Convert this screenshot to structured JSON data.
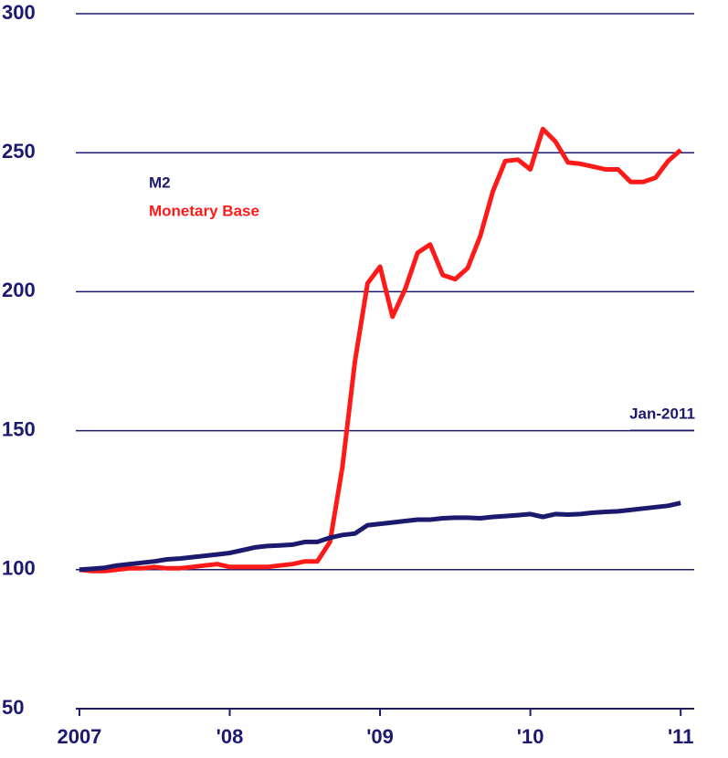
{
  "chart_data": {
    "type": "line",
    "x": [
      2007,
      2007.083,
      2007.167,
      2007.25,
      2007.333,
      2007.417,
      2007.5,
      2007.583,
      2007.667,
      2007.75,
      2007.833,
      2007.917,
      2008,
      2008.083,
      2008.167,
      2008.25,
      2008.333,
      2008.417,
      2008.5,
      2008.583,
      2008.667,
      2008.75,
      2008.833,
      2008.917,
      2009,
      2009.083,
      2009.167,
      2009.25,
      2009.333,
      2009.417,
      2009.5,
      2009.583,
      2009.667,
      2009.75,
      2009.833,
      2009.917,
      2010,
      2010.083,
      2010.167,
      2010.25,
      2010.333,
      2010.417,
      2010.5,
      2010.583,
      2010.667,
      2010.75,
      2010.833,
      2010.917,
      2011
    ],
    "series": [
      {
        "name": "M2",
        "color": "#1c1a6e",
        "values": [
          100,
          100.3,
          100.7,
          101.5,
          102,
          102.5,
          103,
          103.7,
          104,
          104.5,
          105,
          105.5,
          106,
          107,
          108,
          108.5,
          108.7,
          109,
          110,
          110,
          111.5,
          112.5,
          113,
          116,
          116.5,
          117,
          117.5,
          118,
          118,
          118.5,
          118.7,
          118.7,
          118.5,
          119,
          119.3,
          119.6,
          120,
          119,
          120,
          119.8,
          120,
          120.5,
          120.8,
          121,
          121.5,
          122,
          122.5,
          123,
          124
        ]
      },
      {
        "name": "Monetary Base",
        "color": "#ff1a1a",
        "values": [
          100,
          99.5,
          99.5,
          100,
          100.5,
          100.5,
          101,
          100.5,
          100.5,
          101,
          101.5,
          102,
          101,
          101,
          101,
          101,
          101.5,
          102,
          103,
          103,
          110,
          137,
          175,
          203,
          209,
          191,
          201,
          214,
          217,
          206,
          204.5,
          208.5,
          220,
          236,
          247,
          247.5,
          244,
          258.5,
          254,
          246.5,
          246,
          245,
          244,
          244,
          239.5,
          239.5,
          241,
          247,
          251
        ]
      }
    ],
    "xlim": [
      2006.976,
      2011.09
    ],
    "xticks": [
      {
        "value": 2007,
        "label": "2007"
      },
      {
        "value": 2008,
        "label": "'08"
      },
      {
        "value": 2009,
        "label": "'09"
      },
      {
        "value": 2010,
        "label": "'10"
      },
      {
        "value": 2011,
        "label": "'11"
      }
    ],
    "ylim": [
      50,
      300
    ],
    "yticks": [
      50,
      100,
      150,
      200,
      250,
      300
    ],
    "grid": true,
    "annotations": [
      {
        "text": "Jan-2011"
      }
    ]
  }
}
